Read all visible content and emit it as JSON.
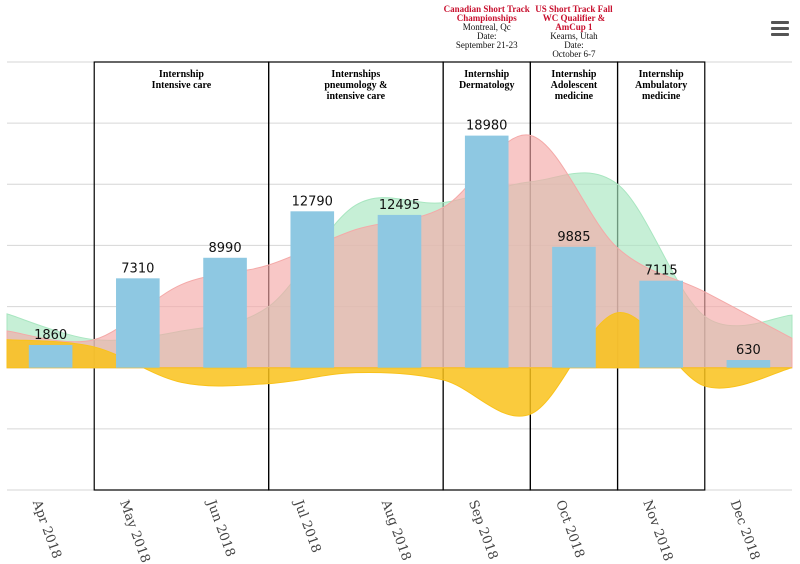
{
  "chart_data": {
    "type": "bar",
    "categories": [
      "Apr 2018",
      "May 2018",
      "Jun 2018",
      "Jul 2018",
      "Aug 2018",
      "Sep 2018",
      "Oct 2018",
      "Nov 2018",
      "Dec 2018"
    ],
    "values": [
      1860,
      7310,
      8990,
      12790,
      12495,
      18980,
      9885,
      7115,
      630
    ],
    "area_series": [
      {
        "color": "#a8e6c0",
        "values": [
          4400,
          2300,
          3000,
          5000,
          13300,
          13500,
          15200,
          15000,
          4200,
          4300
        ]
      },
      {
        "color": "#f4a9a8",
        "values": [
          3000,
          2300,
          6800,
          8400,
          11300,
          13100,
          19000,
          9800,
          6200,
          2400
        ]
      },
      {
        "color": "#f9c21b",
        "values": [
          2300,
          1700,
          -1200,
          -1300,
          -400,
          -1000,
          -3800,
          4500,
          -1500,
          0
        ]
      }
    ],
    "ylim": [
      -10000,
      25000
    ],
    "grid": true,
    "bar_color": "#8ec8e2",
    "bands": [
      {
        "label": [
          "Internship",
          "Intensive care"
        ],
        "from": "May 2018",
        "to": "Jun 2018"
      },
      {
        "label": [
          "Internships",
          "pneumology &",
          "intensive care"
        ],
        "from": "Jul 2018",
        "to": "Aug 2018"
      },
      {
        "label": [
          "Internship",
          "Dermatology"
        ],
        "from": "Sep 2018",
        "to": "Sep 2018"
      },
      {
        "label": [
          "Internship",
          "Adolescent",
          "medicine"
        ],
        "from": "Oct 2018",
        "to": "Oct 2018"
      },
      {
        "label": [
          "Internship",
          "Ambulatory",
          "medicine"
        ],
        "from": "Nov 2018",
        "to": "Nov 2018"
      }
    ],
    "annotations": [
      {
        "at": "Sep 2018",
        "title": [
          "Canadian Short Track",
          "Championships"
        ],
        "sub": [
          "Montreal, Qc",
          "Date:",
          "September 21-23"
        ]
      },
      {
        "at": "Oct 2018",
        "title": [
          "US Short Track Fall",
          "WC Qualifier &",
          "AmCup 1"
        ],
        "sub": [
          "Kearns, Utah",
          "Date:",
          "October 6-7"
        ]
      }
    ]
  },
  "menu": {
    "icon": "hamburger-menu-icon"
  }
}
